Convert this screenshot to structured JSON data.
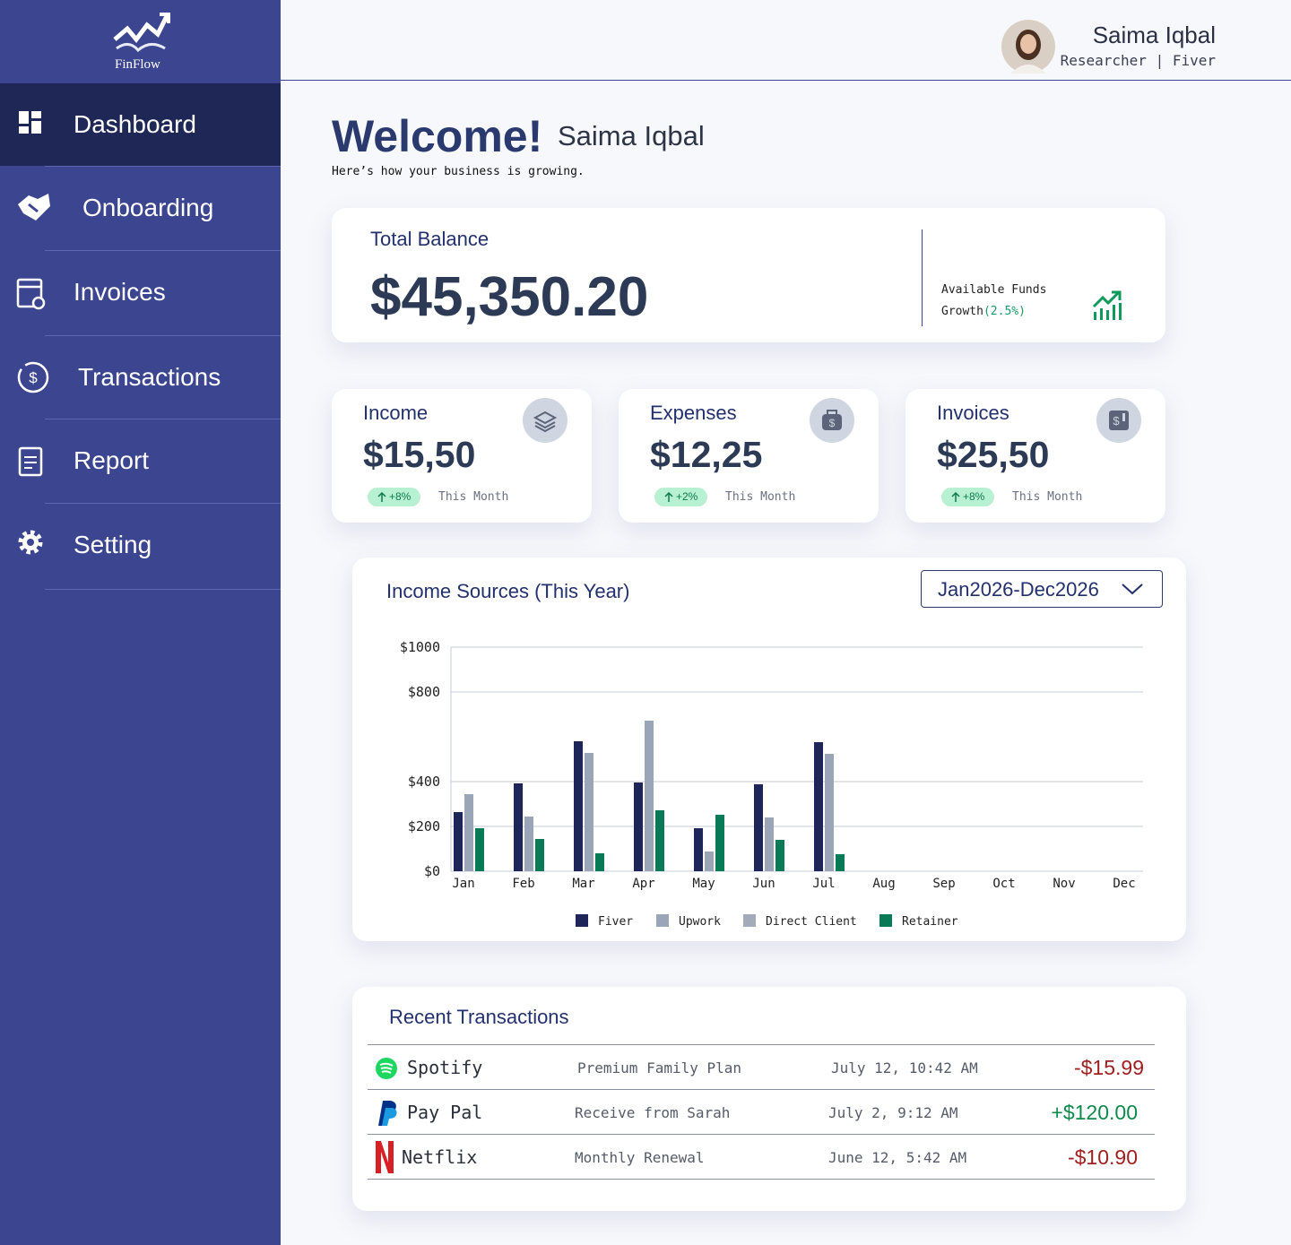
{
  "sidebar": {
    "logo": "FinFlow",
    "nav": [
      "Dashboard",
      "Onboarding",
      "Invoices",
      "Transactions",
      "Report",
      "Setting"
    ]
  },
  "header": {
    "name": "Saima Iqbal",
    "role": "Researcher | Fiver"
  },
  "welcome": {
    "title": "Welcome!",
    "name": "Saima Iqbal",
    "subtitle": "Here’s how your business is growing."
  },
  "balance": {
    "label": "Total Balance",
    "amount": "$45,350.20",
    "note": "Available Funds",
    "growth_label": "Growth",
    "growth_value": "(2.5%)"
  },
  "stats": [
    {
      "label": "Income",
      "amount": "$15,50",
      "change": "+8%",
      "period": "This Month"
    },
    {
      "label": "Expenses",
      "amount": "$12,25",
      "change": "+2%",
      "period": "This Month"
    },
    {
      "label": "Invoices",
      "amount": "$25,50",
      "change": "+8%",
      "period": "This Month"
    }
  ],
  "chart_filter": "Jan2026-Dec2026",
  "chart_data": {
    "type": "bar",
    "title": "Income Sources (This Year)",
    "categories": [
      "Jan",
      "Feb",
      "Mar",
      "Apr",
      "May",
      "Jun",
      "Jul",
      "Aug",
      "Sep",
      "Oct",
      "Nov",
      "Dec"
    ],
    "series": [
      {
        "name": "Fiver",
        "color": "#1e2558",
        "values": [
          264,
          392,
          580,
          396,
          192,
          388,
          576,
          null,
          null,
          null,
          null,
          null
        ]
      },
      {
        "name": "Upwork",
        "color": "#9aa5b8",
        "values": [
          344,
          244,
          528,
          672,
          88,
          240,
          524,
          null,
          null,
          null,
          null,
          null
        ]
      },
      {
        "name": "Direct Client",
        "color": "#a3abbb",
        "values": [
          null,
          null,
          null,
          null,
          null,
          null,
          null,
          null,
          null,
          null,
          null,
          null
        ]
      },
      {
        "name": "Retainer",
        "color": "#087a55",
        "values": [
          192,
          144,
          80,
          272,
          252,
          140,
          76,
          null,
          null,
          null,
          null,
          null
        ]
      }
    ],
    "ylim": [
      0,
      1000
    ],
    "yticks": [
      {
        "value": 0,
        "label": "$0"
      },
      {
        "value": 200,
        "label": "$200"
      },
      {
        "value": 400,
        "label": "$400"
      },
      {
        "value": 800,
        "label": "$800"
      },
      {
        "value": 1000,
        "label": "$1000"
      }
    ],
    "grid": true
  },
  "transactions": {
    "title": "Recent Transactions",
    "rows": [
      {
        "name": "Spotify",
        "description": "Premium Family Plan",
        "date": "July 12, 10:42 AM",
        "amount": "-$15.99"
      },
      {
        "name": "Pay Pal",
        "description": "Receive from Sarah",
        "date": "July 2, 9:12 AM",
        "amount": "+$120.00"
      },
      {
        "name": "Netflix",
        "description": "Monthly Renewal",
        "date": "June 12, 5:42 AM",
        "amount": "-$10.90"
      }
    ]
  }
}
